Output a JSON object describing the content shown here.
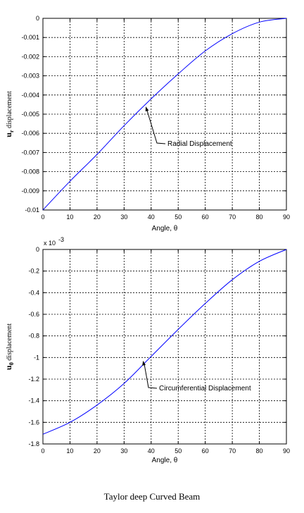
{
  "caption": "Taylor deep Curved Beam",
  "colors": {
    "line": "#0000ff",
    "grid": "#000000",
    "axes": "#000000"
  },
  "chart_data": [
    {
      "type": "line",
      "xlabel": "Angle, θ",
      "ylabel_main": "u",
      "ylabel_sub": "r",
      "ylabel_rest": " displacement",
      "xlim": [
        0,
        90
      ],
      "ylim": [
        -0.01,
        0
      ],
      "xticks": [
        0,
        10,
        20,
        30,
        40,
        50,
        60,
        70,
        80,
        90
      ],
      "yticks": [
        0,
        -0.001,
        -0.002,
        -0.003,
        -0.004,
        -0.005,
        -0.006,
        -0.007,
        -0.008,
        -0.009,
        -0.01
      ],
      "ytick_labels": [
        "0",
        "-0.001",
        "-0.002",
        "-0.003",
        "-0.004",
        "-0.005",
        "-0.006",
        "-0.007",
        "-0.008",
        "-0.009",
        "-0.01"
      ],
      "grid": true,
      "annotation": {
        "text": "Radial Displacement",
        "point": [
          38,
          -0.0046
        ]
      },
      "series": [
        {
          "x": [
            0,
            10,
            20,
            30,
            40,
            50,
            60,
            70,
            80,
            90
          ],
          "values": [
            -0.01,
            -0.0085,
            -0.0071,
            -0.0056,
            -0.0042,
            -0.0029,
            -0.0017,
            -0.0008,
            -0.0002,
            0
          ]
        }
      ]
    },
    {
      "type": "line",
      "xlabel": "Angle, θ",
      "ylabel_main": "u",
      "ylabel_sub": "θ",
      "ylabel_rest": " displacement",
      "exponent_label": "x 10",
      "exponent_power": "-3",
      "xlim": [
        0,
        90
      ],
      "ylim": [
        -1.8,
        0
      ],
      "xticks": [
        0,
        10,
        20,
        30,
        40,
        50,
        60,
        70,
        80,
        90
      ],
      "yticks": [
        0,
        -0.2,
        -0.4,
        -0.6,
        -0.8,
        -1,
        -1.2,
        -1.4,
        -1.6,
        -1.8
      ],
      "ytick_labels": [
        "0",
        "-0.2",
        "-0.4",
        "-0.6",
        "-0.8",
        "-1",
        "-1.2",
        "-1.4",
        "-1.6",
        "-1.8"
      ],
      "grid": true,
      "annotation": {
        "text": "Circumferential Displacement",
        "point": [
          37,
          -1.03
        ]
      },
      "series": [
        {
          "x": [
            0,
            10,
            20,
            30,
            40,
            50,
            60,
            70,
            80,
            90
          ],
          "values": [
            -1.71,
            -1.6,
            -1.44,
            -1.24,
            -0.99,
            -0.74,
            -0.5,
            -0.28,
            -0.11,
            0
          ]
        }
      ]
    }
  ]
}
